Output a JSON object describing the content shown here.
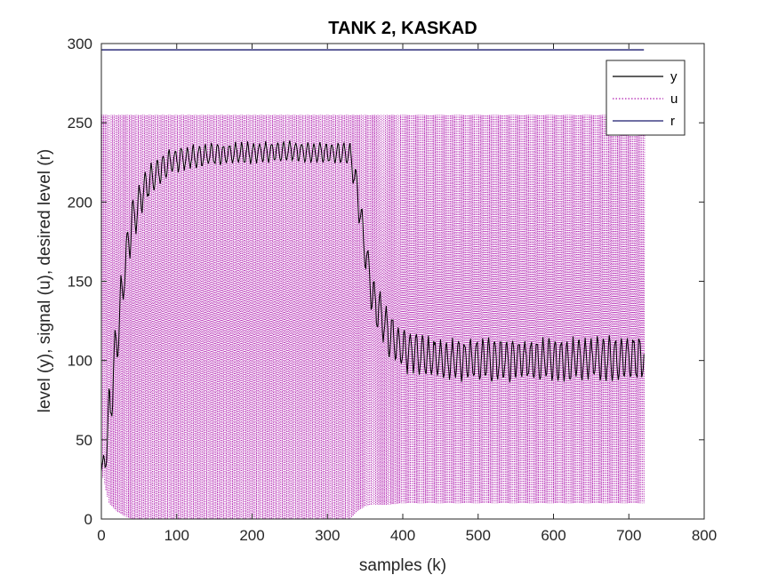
{
  "chart_data": {
    "type": "line",
    "title": "TANK 2, KASKAD",
    "xlabel": "samples (k)",
    "ylabel": "level (y), signal (u), desired level (r)",
    "xlim": [
      0,
      800
    ],
    "ylim": [
      0,
      300
    ],
    "xticks": [
      "0",
      "100",
      "200",
      "300",
      "400",
      "500",
      "600",
      "700",
      "800"
    ],
    "yticks": [
      "0",
      "50",
      "100",
      "150",
      "200",
      "250",
      "300"
    ],
    "legend_position": "top-right",
    "x_points": [
      0,
      5,
      10,
      20,
      30,
      40,
      50,
      60,
      80,
      100,
      150,
      200,
      250,
      300,
      330,
      340,
      350,
      360,
      380,
      400,
      450,
      500,
      550,
      600,
      650,
      700,
      720
    ],
    "series": [
      {
        "name": "y",
        "color": "#000000",
        "style": "solid",
        "center": [
          30,
          40,
          60,
          110,
          155,
          185,
          200,
          212,
          222,
          227,
          230,
          231,
          232,
          231,
          230,
          205,
          170,
          140,
          118,
          107,
          100,
          100,
          101,
          100,
          101,
          101,
          102
        ],
        "amplitude": [
          0,
          10,
          18,
          18,
          16,
          14,
          12,
          10,
          8,
          7,
          6,
          6,
          6,
          6,
          6,
          10,
          12,
          12,
          12,
          12,
          12,
          12,
          12,
          12,
          12,
          13,
          13
        ]
      },
      {
        "name": "u",
        "color": "#b020b0",
        "style": "dotted",
        "low": [
          30,
          20,
          10,
          5,
          2,
          0,
          0,
          0,
          0,
          0,
          0,
          0,
          0,
          0,
          0,
          5,
          8,
          9,
          9,
          10,
          10,
          10,
          10,
          10,
          10,
          10,
          10
        ],
        "high": [
          255,
          255,
          255,
          255,
          255,
          255,
          255,
          255,
          255,
          255,
          255,
          255,
          255,
          255,
          255,
          255,
          255,
          255,
          255,
          255,
          255,
          255,
          255,
          255,
          255,
          255,
          255
        ]
      },
      {
        "name": "r",
        "color": "#1a1a6e",
        "style": "solid",
        "x": [
          0,
          720
        ],
        "values": [
          296,
          296
        ]
      }
    ]
  }
}
